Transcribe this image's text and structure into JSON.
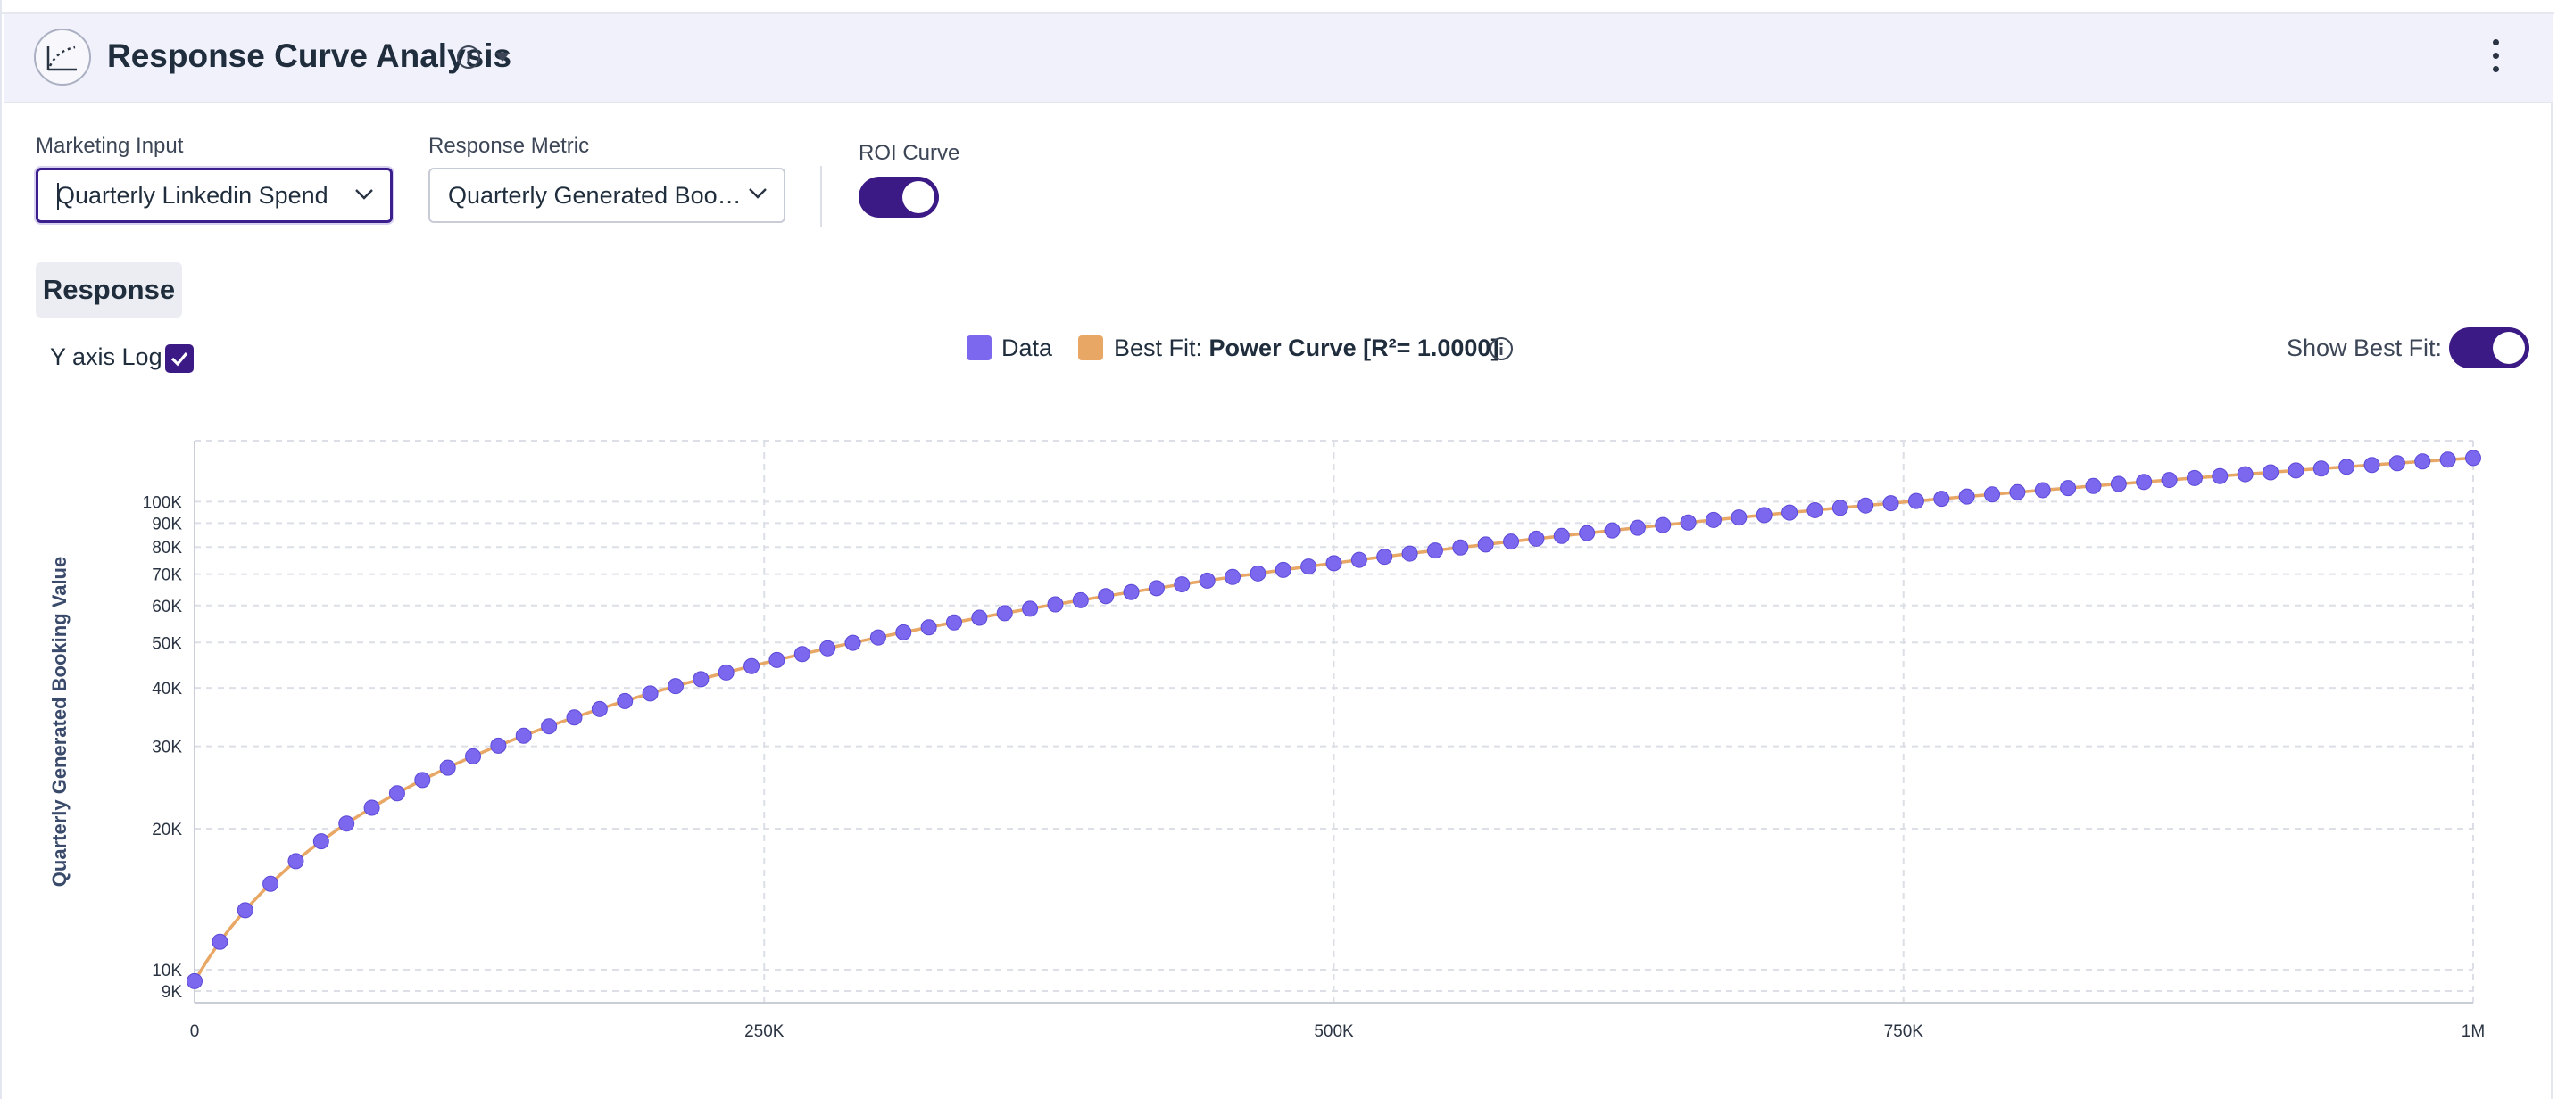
{
  "header": {
    "title": "Response Curve Analysis"
  },
  "controls": {
    "marketing_input": {
      "label": "Marketing Input",
      "value": "Quarterly Linkedin Spend"
    },
    "response_metric": {
      "label": "Response Metric",
      "value": "Quarterly Generated Boo…"
    },
    "roi_curve": {
      "label": "ROI Curve",
      "on": true
    }
  },
  "tab": {
    "label": "Response"
  },
  "y_axis_log": {
    "label": "Y axis Log",
    "checked": true
  },
  "legend": {
    "data_label": "Data",
    "fit_prefix": "Best Fit:",
    "fit_label": "Power Curve [R²= 1.0000]"
  },
  "show_best_fit": {
    "label": "Show Best Fit:",
    "on": true
  },
  "colors": {
    "accent": "#3b1a86",
    "data": "#7b68ee",
    "fit": "#e8a765",
    "header_bg": "#f0f1fb"
  },
  "icons": [
    "response-curve-icon",
    "info-icon",
    "caret-down-icon",
    "kebab-menu-icon",
    "chevron-down-icon",
    "check-icon"
  ],
  "chart_data": {
    "type": "scatter",
    "title": "",
    "xlabel": "",
    "ylabel": "Quarterly Generated Booking Value",
    "x_scale": "linear",
    "y_scale": "log",
    "xlim": [
      0,
      1000000
    ],
    "ylim": [
      8500,
      135000
    ],
    "x_ticks": [
      {
        "value": 0,
        "label": "0"
      },
      {
        "value": 250000,
        "label": "250K"
      },
      {
        "value": 500000,
        "label": "500K"
      },
      {
        "value": 750000,
        "label": "750K"
      },
      {
        "value": 1000000,
        "label": "1M"
      }
    ],
    "y_ticks": [
      {
        "value": 9000,
        "label": "9K"
      },
      {
        "value": 10000,
        "label": "10K"
      },
      {
        "value": 20000,
        "label": "20K"
      },
      {
        "value": 30000,
        "label": "30K"
      },
      {
        "value": 40000,
        "label": "40K"
      },
      {
        "value": 50000,
        "label": "50K"
      },
      {
        "value": 60000,
        "label": "60K"
      },
      {
        "value": 70000,
        "label": "70K"
      },
      {
        "value": 80000,
        "label": "80K"
      },
      {
        "value": 90000,
        "label": "90K"
      },
      {
        "value": 100000,
        "label": "100K"
      }
    ],
    "grid": true,
    "series": [
      {
        "name": "Data",
        "kind": "points",
        "x_start": 0,
        "x_step": 11111,
        "count": 91,
        "y_first": 9450,
        "y_last": 124000
      },
      {
        "name": "Best Fit",
        "kind": "line",
        "model": "power",
        "r2": 1.0,
        "x_range": [
          0,
          1000000
        ]
      }
    ]
  }
}
